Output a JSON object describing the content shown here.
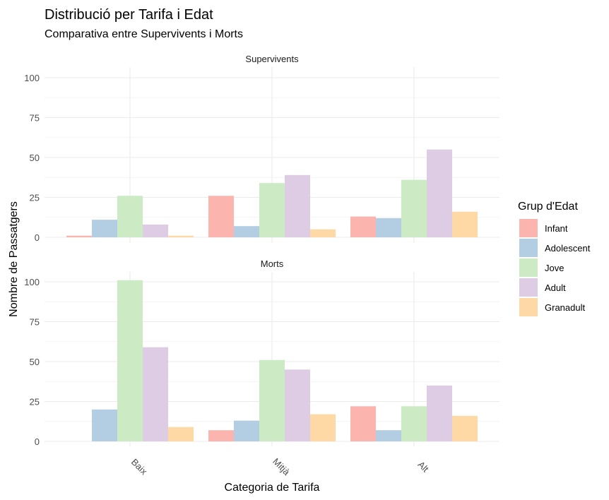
{
  "chart_data": {
    "type": "bar",
    "title": "Distribució per Tarifa i Edat",
    "subtitle": "Comparativa entre Supervivents i Morts",
    "xlabel": "Categoria de Tarifa",
    "ylabel": "Nombre de Passatgers",
    "categories": [
      "Baix",
      "Mitjà",
      "Alt"
    ],
    "ylim": [
      0,
      105
    ],
    "yticks": [
      0,
      25,
      50,
      75,
      100
    ],
    "grid": true,
    "legend": {
      "title": "Grup d'Edat",
      "placement": "right",
      "entries": [
        "Infant",
        "Adolescent",
        "Jove",
        "Adult",
        "Granadult"
      ]
    },
    "colors": {
      "Infant": "#FBB4AE",
      "Adolescent": "#B3CDE3",
      "Jove": "#CCEBC5",
      "Adult": "#DECBE4",
      "Granadult": "#FED9A6"
    },
    "facets": [
      {
        "label": "Supervivents",
        "series": [
          {
            "name": "Infant",
            "values": [
              1,
              26,
              13
            ]
          },
          {
            "name": "Adolescent",
            "values": [
              11,
              7,
              12
            ]
          },
          {
            "name": "Jove",
            "values": [
              26,
              34,
              36
            ]
          },
          {
            "name": "Adult",
            "values": [
              8,
              39,
              55
            ]
          },
          {
            "name": "Granadult",
            "values": [
              1,
              5,
              16
            ]
          }
        ]
      },
      {
        "label": "Morts",
        "series": [
          {
            "name": "Infant",
            "values": [
              null,
              7,
              22
            ]
          },
          {
            "name": "Adolescent",
            "values": [
              20,
              13,
              7
            ]
          },
          {
            "name": "Jove",
            "values": [
              101,
              51,
              22
            ]
          },
          {
            "name": "Adult",
            "values": [
              59,
              45,
              35
            ]
          },
          {
            "name": "Granadult",
            "values": [
              9,
              17,
              16
            ]
          }
        ]
      }
    ]
  }
}
